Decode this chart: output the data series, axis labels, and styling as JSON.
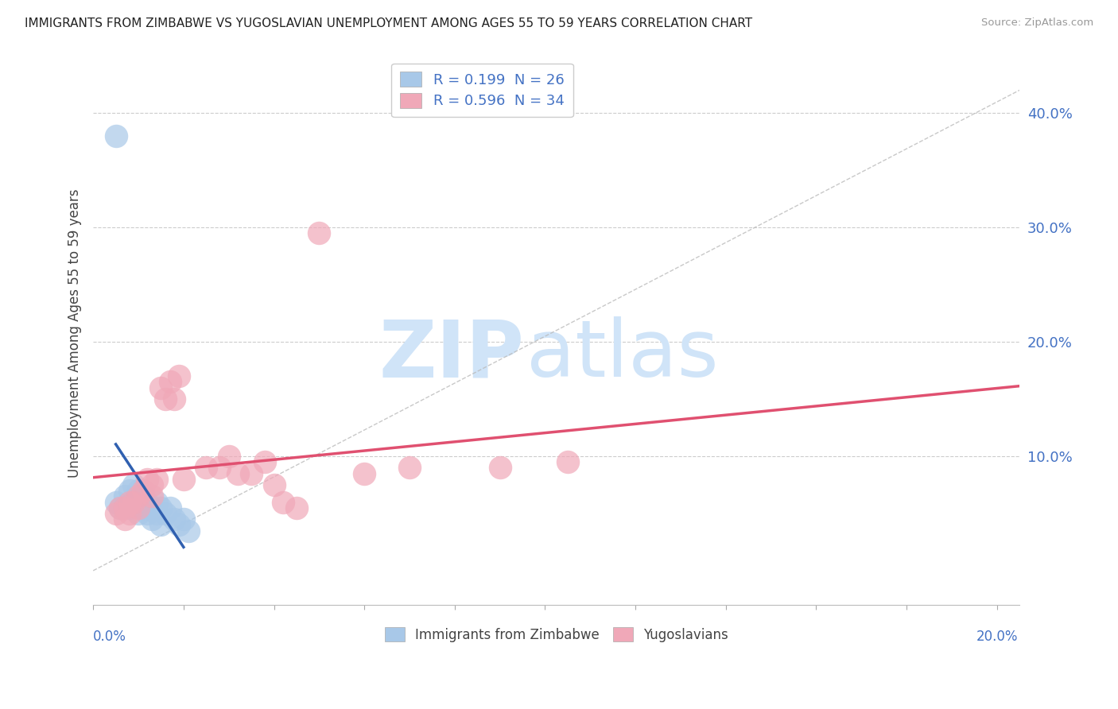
{
  "title": "IMMIGRANTS FROM ZIMBABWE VS YUGOSLAVIAN UNEMPLOYMENT AMONG AGES 55 TO 59 YEARS CORRELATION CHART",
  "source": "Source: ZipAtlas.com",
  "ylabel": "Unemployment Among Ages 55 to 59 years",
  "xlim": [
    0.0,
    0.205
  ],
  "ylim": [
    -0.03,
    0.445
  ],
  "ytick_vals": [
    0.1,
    0.2,
    0.3,
    0.4
  ],
  "ytick_labels": [
    "10.0%",
    "20.0%",
    "30.0%",
    "40.0%"
  ],
  "color_blue": "#A8C8E8",
  "color_pink": "#F0A8B8",
  "line_blue": "#3060B0",
  "line_pink": "#E05070",
  "color_axis_label": "#4472C4",
  "watermark_zip": "ZIP",
  "watermark_atlas": "atlas",
  "watermark_color": "#D0E4F8",
  "legend_r1": "R = 0.199  N = 26",
  "legend_r2": "R = 0.596  N = 34",
  "zim_x": [
    0.005,
    0.005,
    0.006,
    0.007,
    0.008,
    0.008,
    0.009,
    0.009,
    0.01,
    0.01,
    0.011,
    0.011,
    0.012,
    0.012,
    0.013,
    0.013,
    0.014,
    0.014,
    0.015,
    0.015,
    0.016,
    0.017,
    0.018,
    0.019,
    0.02,
    0.021
  ],
  "zim_y": [
    0.38,
    0.06,
    0.055,
    0.065,
    0.07,
    0.055,
    0.075,
    0.06,
    0.07,
    0.05,
    0.065,
    0.055,
    0.06,
    0.05,
    0.055,
    0.045,
    0.06,
    0.05,
    0.055,
    0.04,
    0.05,
    0.055,
    0.045,
    0.04,
    0.045,
    0.035
  ],
  "yug_x": [
    0.005,
    0.006,
    0.007,
    0.007,
    0.008,
    0.008,
    0.009,
    0.01,
    0.01,
    0.011,
    0.012,
    0.013,
    0.013,
    0.014,
    0.015,
    0.016,
    0.017,
    0.018,
    0.019,
    0.02,
    0.025,
    0.028,
    0.03,
    0.032,
    0.035,
    0.038,
    0.04,
    0.042,
    0.045,
    0.05,
    0.06,
    0.07,
    0.09,
    0.105
  ],
  "yug_y": [
    0.05,
    0.055,
    0.055,
    0.045,
    0.06,
    0.05,
    0.06,
    0.065,
    0.055,
    0.07,
    0.08,
    0.075,
    0.065,
    0.08,
    0.16,
    0.15,
    0.165,
    0.15,
    0.17,
    0.08,
    0.09,
    0.09,
    0.1,
    0.085,
    0.085,
    0.095,
    0.075,
    0.06,
    0.055,
    0.295,
    0.085,
    0.09,
    0.09,
    0.095
  ],
  "zim_line_x0": 0.005,
  "zim_line_x1": 0.02,
  "yug_line_x0": 0.0,
  "yug_line_x1": 0.205
}
